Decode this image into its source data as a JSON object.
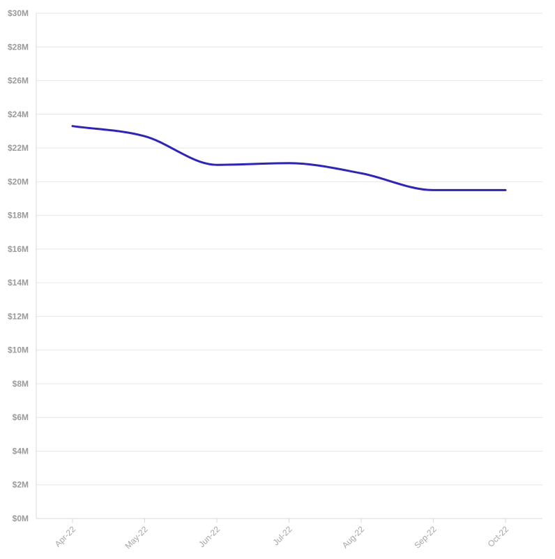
{
  "chart_data": {
    "type": "line",
    "title": "",
    "xlabel": "",
    "ylabel": "",
    "categories": [
      "Apr-22",
      "May-22",
      "Jun-22",
      "Jul-22",
      "Aug-22",
      "Sep-22",
      "Oct-22"
    ],
    "series": [
      {
        "values": [
          23.3,
          22.7,
          21.0,
          21.1,
          20.5,
          19.5,
          19.5
        ],
        "color": "#2b22c8"
      }
    ],
    "y_unit": "millions USD",
    "ylim": [
      0,
      30
    ],
    "y_ticks": [
      0,
      2,
      4,
      6,
      8,
      10,
      12,
      14,
      16,
      18,
      20,
      22,
      24,
      26,
      28,
      30
    ],
    "y_tick_labels": [
      "$0M",
      "$2M",
      "$4M",
      "$6M",
      "$8M",
      "$10M",
      "$12M",
      "$14M",
      "$16M",
      "$18M",
      "$20M",
      "$22M",
      "$24M",
      "$26M",
      "$28M",
      "$30M"
    ],
    "grid": true,
    "legend": "none"
  }
}
